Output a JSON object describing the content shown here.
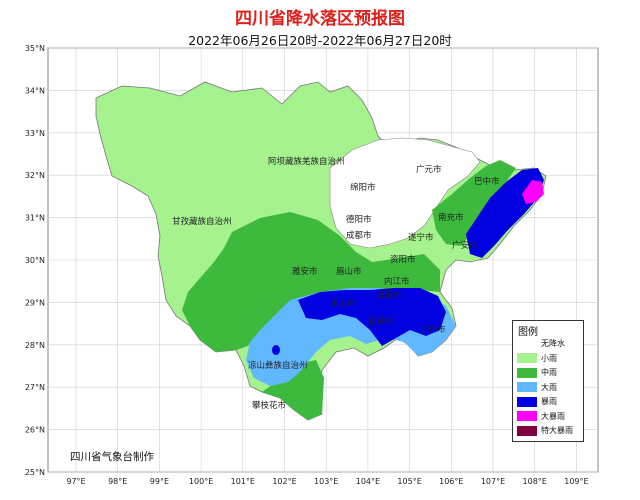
{
  "title": "四川省降水落区预报图",
  "subtitle": "2022年06月26日20时-2022年06月27日20时",
  "producer": "四川省气象台制作",
  "lat_ticks": [
    "35°N",
    "34°N",
    "33°N",
    "32°N",
    "31°N",
    "30°N",
    "29°N",
    "28°N",
    "27°N",
    "26°N",
    "25°N"
  ],
  "lon_ticks": [
    "97°E",
    "98°E",
    "99°E",
    "100°E",
    "101°E",
    "102°E",
    "103°E",
    "104°E",
    "105°E",
    "106°E",
    "107°E",
    "108°E",
    "109°E"
  ],
  "cities": [
    {
      "name": "阿坝藏族羌族自治州",
      "id": "aba"
    },
    {
      "name": "甘孜藏族自治州",
      "id": "ganzi"
    },
    {
      "name": "凉山彝族自治州",
      "id": "liangshan"
    },
    {
      "name": "广元市",
      "id": "guangyuan"
    },
    {
      "name": "巴中市",
      "id": "bazhong"
    },
    {
      "name": "绵阳市",
      "id": "mianyang"
    },
    {
      "name": "南充市",
      "id": "nanchong"
    },
    {
      "name": "德阳市",
      "id": "deyang"
    },
    {
      "name": "成都市",
      "id": "chengdu"
    },
    {
      "name": "遂宁市",
      "id": "suining"
    },
    {
      "name": "广安市",
      "id": "guangan"
    },
    {
      "name": "资阳市",
      "id": "ziyang"
    },
    {
      "name": "雅安市",
      "id": "yaan"
    },
    {
      "name": "眉山市",
      "id": "meishan"
    },
    {
      "name": "内江市",
      "id": "neijiang"
    },
    {
      "name": "乐山市",
      "id": "leshan"
    },
    {
      "name": "自贡市",
      "id": "zigong"
    },
    {
      "name": "宜宾市",
      "id": "yibin"
    },
    {
      "name": "泸州市",
      "id": "luzhou"
    },
    {
      "name": "攀枝花市",
      "id": "panzhihua"
    }
  ],
  "legend": {
    "title": "图例",
    "items": [
      {
        "label": "无降水",
        "color": "#ffffff"
      },
      {
        "label": "小雨",
        "color": "#a6f28f"
      },
      {
        "label": "中雨",
        "color": "#3dba3d"
      },
      {
        "label": "大雨",
        "color": "#61b8ff"
      },
      {
        "label": "暴雨",
        "color": "#0000e1"
      },
      {
        "label": "大暴雨",
        "color": "#fa00fa"
      },
      {
        "label": "特大暴雨",
        "color": "#800040"
      }
    ]
  }
}
